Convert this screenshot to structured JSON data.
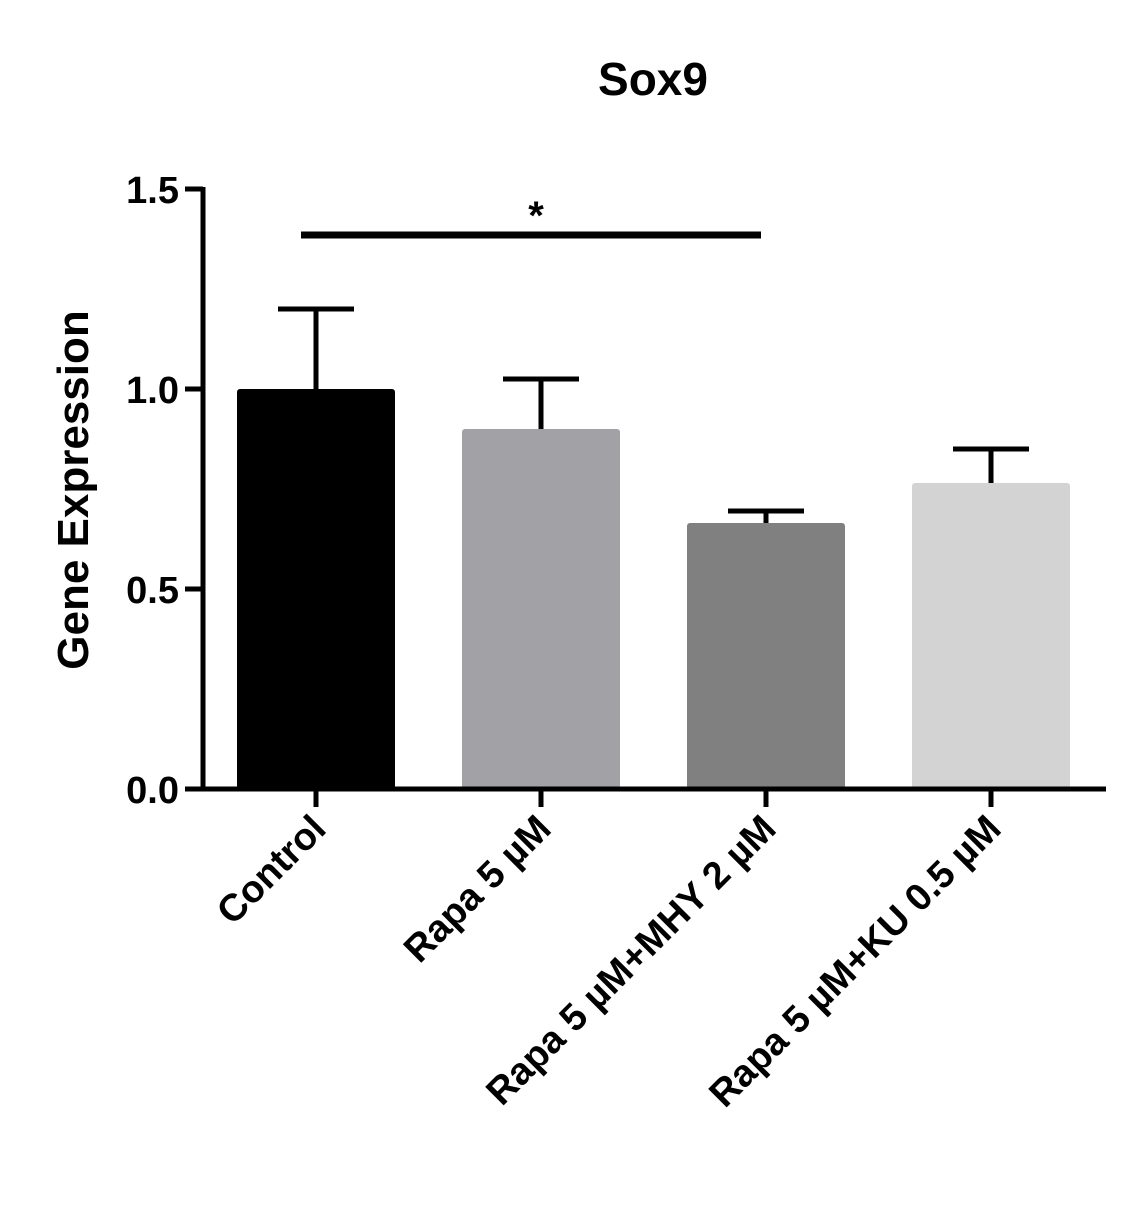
{
  "chart_data": {
    "type": "bar",
    "title": "Sox9",
    "xlabel": "",
    "ylabel": "Gene Expression",
    "ylim": [
      0,
      1.5
    ],
    "yticks": [
      "0.0",
      "0.5",
      "1.0",
      "1.5"
    ],
    "categories": [
      "Control",
      "Rapa 5 µM",
      "Rapa 5 µM+MHY 2 µM",
      "Rapa 5 µM+KU 0.5 µM"
    ],
    "values": [
      1.0,
      0.9,
      0.665,
      0.765
    ],
    "errors": [
      0.2,
      0.125,
      0.03,
      0.085
    ],
    "colors": [
      "#000000",
      "#a2a2a6",
      "#808080",
      "#d3d3d3"
    ],
    "significance": [
      {
        "from": 0,
        "to": 2,
        "label": "*"
      }
    ],
    "grid": false,
    "legend": "none"
  }
}
